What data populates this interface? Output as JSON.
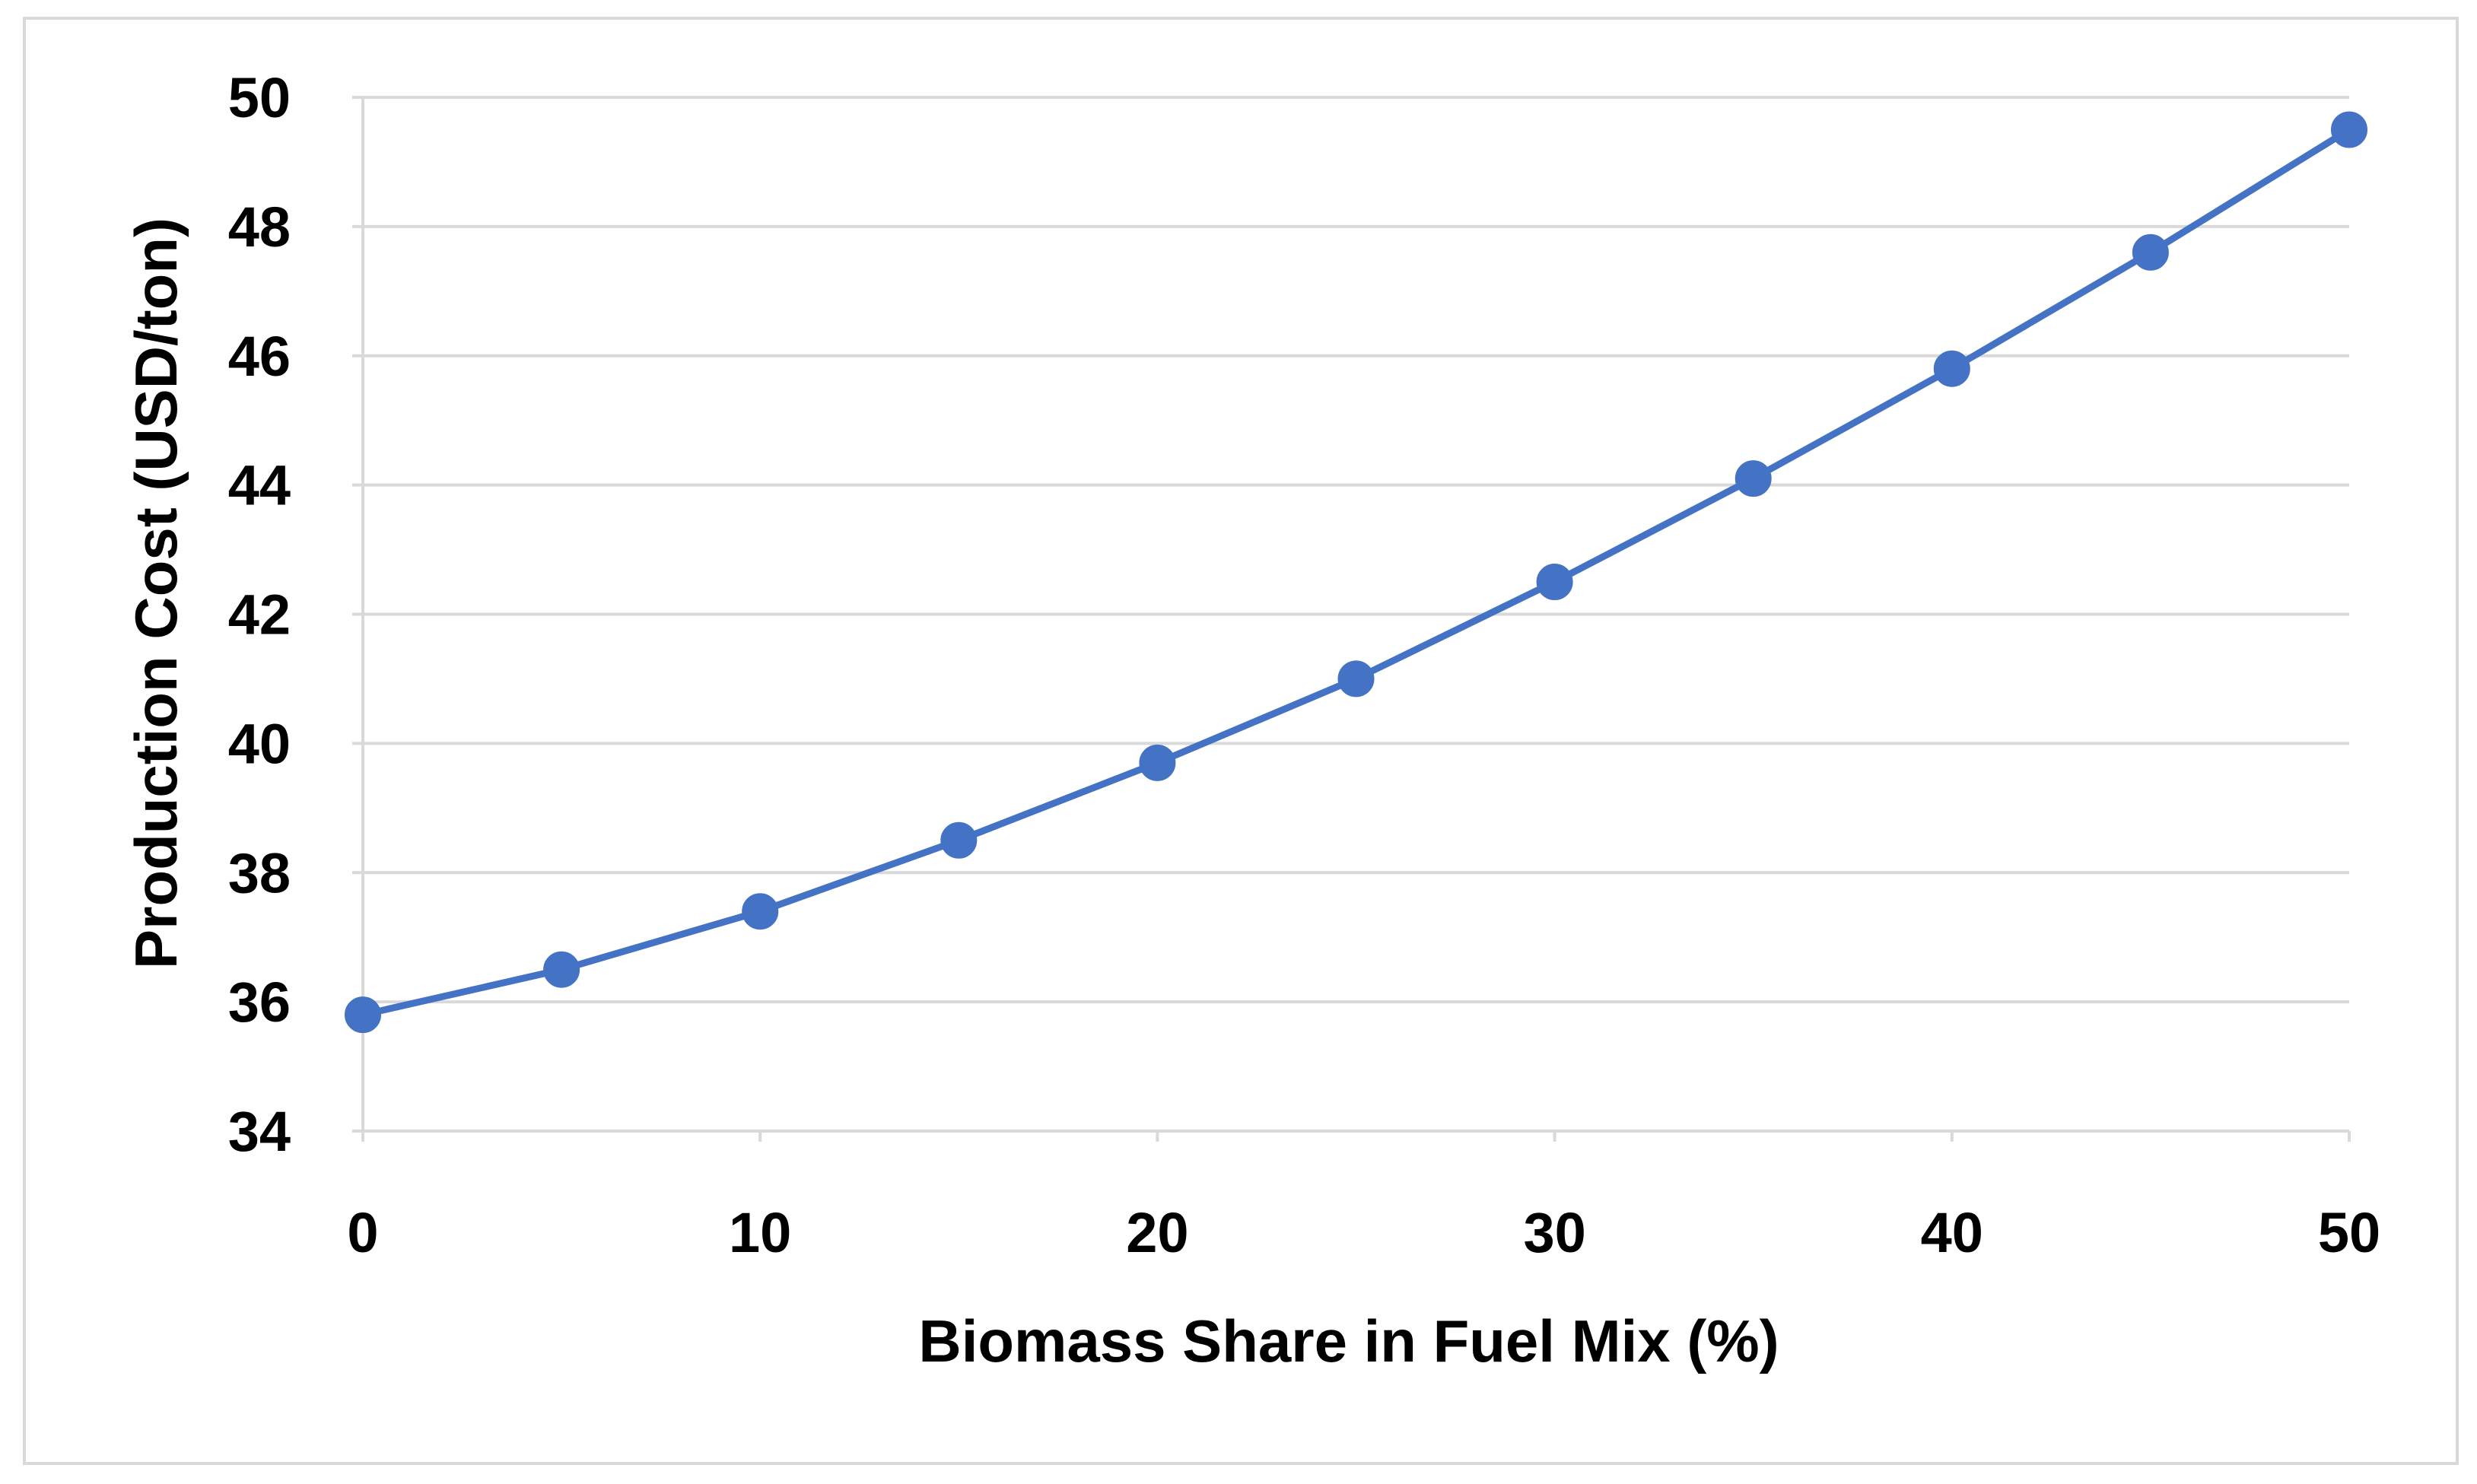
{
  "chart_data": {
    "type": "line",
    "title": "",
    "xlabel": "Biomass Share in Fuel Mix (%)",
    "ylabel": "Production Cost (USD/ton)",
    "xlim": [
      0,
      50
    ],
    "ylim": [
      34,
      50
    ],
    "x_ticks": [
      0,
      10,
      20,
      30,
      40,
      50
    ],
    "y_ticks": [
      34,
      36,
      38,
      40,
      42,
      44,
      46,
      48,
      50
    ],
    "grid": "horizontal",
    "legend": "none",
    "series": [
      {
        "color": "#4472C4",
        "x": [
          0,
          5,
          10,
          15,
          20,
          25,
          30,
          35,
          40,
          45,
          50
        ],
        "y": [
          35.8,
          36.5,
          37.4,
          38.5,
          39.7,
          41.0,
          42.5,
          44.1,
          45.8,
          47.6,
          49.5
        ]
      }
    ]
  },
  "colors": {
    "series": "#4472C4",
    "gridline": "#d9d9d9",
    "frame": "#d9d9d9",
    "text": "#000000"
  }
}
